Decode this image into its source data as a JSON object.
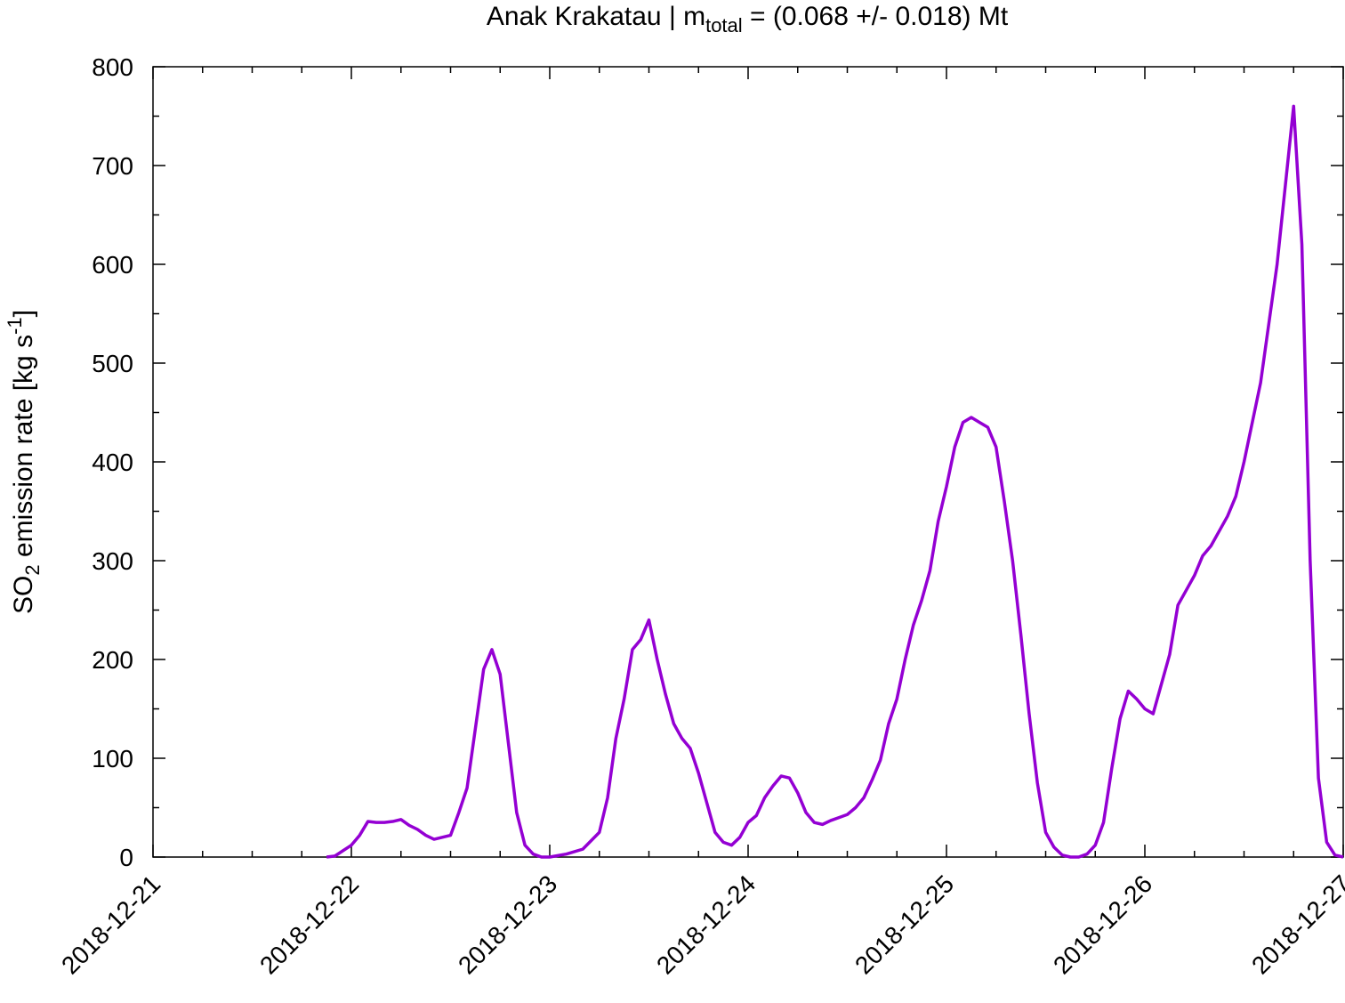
{
  "chart_data": {
    "type": "line",
    "title": [
      "Anak Krakatau | m",
      "total",
      " = (0.068 +/- 0.018) Mt"
    ],
    "y_label": [
      "SO",
      "2",
      " emission rate [kg s",
      "-1",
      "]"
    ],
    "x": [
      "2018-12-21T21:00",
      "2018-12-21T22:00",
      "2018-12-22T00:00",
      "2018-12-22T01:00",
      "2018-12-22T02:00",
      "2018-12-22T03:00",
      "2018-12-22T04:00",
      "2018-12-22T05:00",
      "2018-12-22T06:00",
      "2018-12-22T07:00",
      "2018-12-22T08:00",
      "2018-12-22T09:00",
      "2018-12-22T10:00",
      "2018-12-22T11:00",
      "2018-12-22T12:00",
      "2018-12-22T13:00",
      "2018-12-22T14:00",
      "2018-12-22T15:00",
      "2018-12-22T16:00",
      "2018-12-22T17:00",
      "2018-12-22T18:00",
      "2018-12-22T19:00",
      "2018-12-22T20:00",
      "2018-12-22T21:00",
      "2018-12-22T22:00",
      "2018-12-22T23:00",
      "2018-12-23T00:00",
      "2018-12-23T02:00",
      "2018-12-23T04:00",
      "2018-12-23T06:00",
      "2018-12-23T07:00",
      "2018-12-23T08:00",
      "2018-12-23T09:00",
      "2018-12-23T10:00",
      "2018-12-23T11:00",
      "2018-12-23T12:00",
      "2018-12-23T13:00",
      "2018-12-23T14:00",
      "2018-12-23T15:00",
      "2018-12-23T16:00",
      "2018-12-23T17:00",
      "2018-12-23T18:00",
      "2018-12-23T19:00",
      "2018-12-23T20:00",
      "2018-12-23T21:00",
      "2018-12-23T22:00",
      "2018-12-23T23:00",
      "2018-12-24T00:00",
      "2018-12-24T01:00",
      "2018-12-24T02:00",
      "2018-12-24T03:00",
      "2018-12-24T04:00",
      "2018-12-24T05:00",
      "2018-12-24T06:00",
      "2018-12-24T07:00",
      "2018-12-24T08:00",
      "2018-12-24T09:00",
      "2018-12-24T10:00",
      "2018-12-24T11:00",
      "2018-12-24T12:00",
      "2018-12-24T13:00",
      "2018-12-24T14:00",
      "2018-12-24T15:00",
      "2018-12-24T16:00",
      "2018-12-24T17:00",
      "2018-12-24T18:00",
      "2018-12-24T19:00",
      "2018-12-24T20:00",
      "2018-12-24T21:00",
      "2018-12-24T22:00",
      "2018-12-24T23:00",
      "2018-12-25T00:00",
      "2018-12-25T01:00",
      "2018-12-25T02:00",
      "2018-12-25T03:00",
      "2018-12-25T04:00",
      "2018-12-25T05:00",
      "2018-12-25T06:00",
      "2018-12-25T07:00",
      "2018-12-25T08:00",
      "2018-12-25T09:00",
      "2018-12-25T10:00",
      "2018-12-25T11:00",
      "2018-12-25T12:00",
      "2018-12-25T13:00",
      "2018-12-25T14:00",
      "2018-12-25T15:00",
      "2018-12-25T16:00",
      "2018-12-25T17:00",
      "2018-12-25T18:00",
      "2018-12-25T19:00",
      "2018-12-25T20:00",
      "2018-12-25T21:00",
      "2018-12-25T22:00",
      "2018-12-25T23:00",
      "2018-12-26T00:00",
      "2018-12-26T01:00",
      "2018-12-26T02:00",
      "2018-12-26T03:00",
      "2018-12-26T04:00",
      "2018-12-26T05:00",
      "2018-12-26T06:00",
      "2018-12-26T07:00",
      "2018-12-26T08:00",
      "2018-12-26T09:00",
      "2018-12-26T10:00",
      "2018-12-26T11:00",
      "2018-12-26T12:00",
      "2018-12-26T13:00",
      "2018-12-26T14:00",
      "2018-12-26T15:00",
      "2018-12-26T16:00",
      "2018-12-26T17:00",
      "2018-12-26T18:00",
      "2018-12-26T19:00",
      "2018-12-26T20:00",
      "2018-12-26T21:00",
      "2018-12-26T22:00",
      "2018-12-26T23:00",
      "2018-12-27T00:00"
    ],
    "series": [
      {
        "color": "#9400d3",
        "values": [
          0,
          1,
          12,
          22,
          36,
          35,
          35,
          36,
          38,
          32,
          28,
          22,
          18,
          20,
          22,
          45,
          70,
          130,
          190,
          210,
          185,
          115,
          45,
          12,
          3,
          0,
          0,
          3,
          8,
          25,
          60,
          120,
          160,
          210,
          220,
          240,
          200,
          165,
          135,
          120,
          110,
          85,
          55,
          25,
          15,
          12,
          20,
          35,
          42,
          60,
          72,
          82,
          80,
          65,
          45,
          35,
          33,
          37,
          40,
          43,
          50,
          60,
          78,
          98,
          135,
          160,
          200,
          235,
          260,
          290,
          340,
          375,
          415,
          440,
          445,
          440,
          435,
          415,
          360,
          300,
          225,
          145,
          75,
          25,
          10,
          2,
          0,
          0,
          3,
          12,
          35,
          90,
          140,
          168,
          160,
          150,
          145,
          175,
          205,
          255,
          270,
          285,
          305,
          315,
          330,
          345,
          365,
          400,
          440,
          480,
          540,
          600,
          680,
          760,
          620,
          300,
          80,
          15,
          2,
          0
        ]
      }
    ],
    "xlim": [
      "2018-12-21",
      "2018-12-27"
    ],
    "xticks": [
      "2018-12-21",
      "2018-12-22",
      "2018-12-23",
      "2018-12-24",
      "2018-12-25",
      "2018-12-26",
      "2018-12-27"
    ],
    "ylim": [
      0,
      800
    ],
    "yticks": [
      0,
      100,
      200,
      300,
      400,
      500,
      600,
      700,
      800
    ],
    "grid": false
  }
}
